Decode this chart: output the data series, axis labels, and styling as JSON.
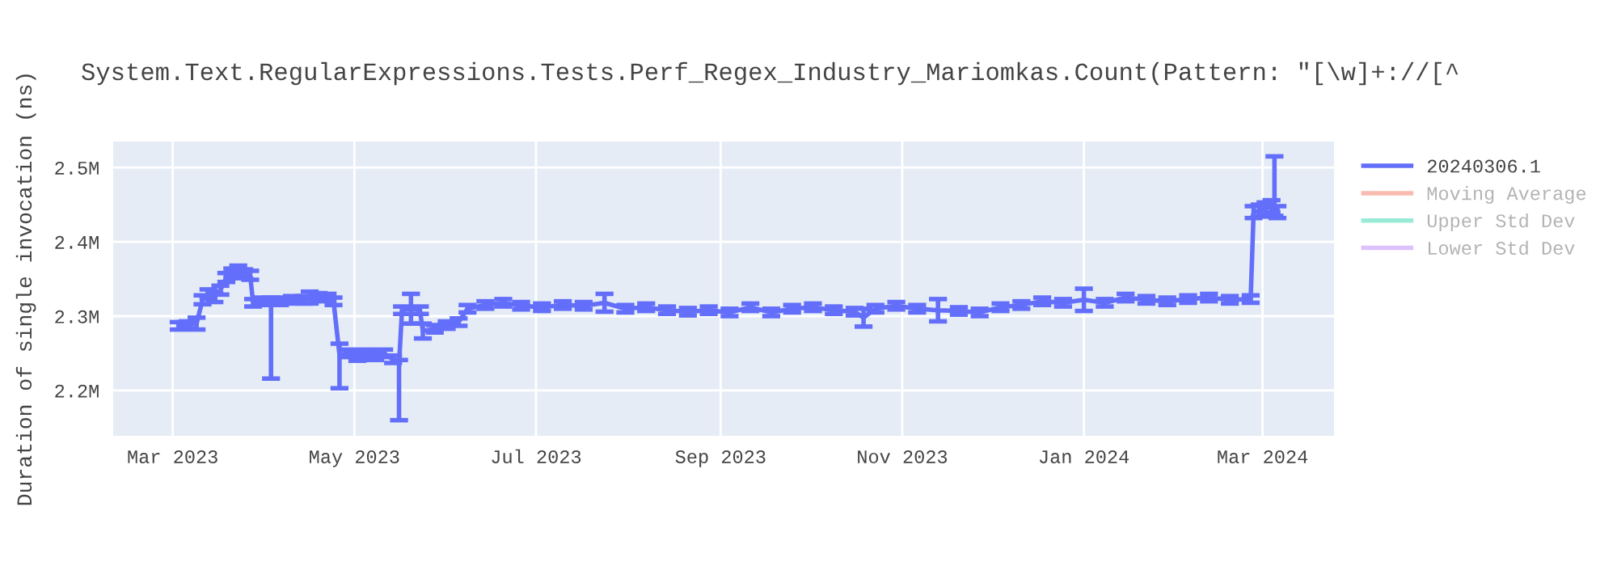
{
  "chart_data": {
    "type": "line",
    "title": "System.Text.RegularExpressions.Tests.Perf_Regex_Industry_Mariomkas.Count(Pattern: \"[\\w]+://[^",
    "ylabel": "Duration of single invocation (ns)",
    "x": [
      "2023-03-03",
      "2023-03-06",
      "2023-03-09",
      "2023-03-11",
      "2023-03-13",
      "2023-03-15",
      "2023-03-17",
      "2023-03-19",
      "2023-03-21",
      "2023-03-23",
      "2023-03-25",
      "2023-03-27",
      "2023-03-28",
      "2023-03-31",
      "2023-04-03",
      "2023-04-06",
      "2023-04-10",
      "2023-04-14",
      "2023-04-16",
      "2023-04-19",
      "2023-04-22",
      "2023-04-24",
      "2023-04-26",
      "2023-04-29",
      "2023-05-02",
      "2023-05-05",
      "2023-05-08",
      "2023-05-11",
      "2023-05-14",
      "2023-05-16",
      "2023-05-17",
      "2023-05-20",
      "2023-05-23",
      "2023-05-24",
      "2023-05-28",
      "2023-06-01",
      "2023-06-05",
      "2023-06-08",
      "2023-06-14",
      "2023-06-20",
      "2023-06-26",
      "2023-07-03",
      "2023-07-10",
      "2023-07-17",
      "2023-07-24",
      "2023-07-31",
      "2023-08-07",
      "2023-08-14",
      "2023-08-21",
      "2023-08-28",
      "2023-09-04",
      "2023-09-11",
      "2023-09-18",
      "2023-09-25",
      "2023-10-02",
      "2023-10-09",
      "2023-10-16",
      "2023-10-19",
      "2023-10-23",
      "2023-10-30",
      "2023-11-06",
      "2023-11-13",
      "2023-11-20",
      "2023-11-27",
      "2023-12-04",
      "2023-12-11",
      "2023-12-18",
      "2023-12-25",
      "2024-01-01",
      "2024-01-08",
      "2024-01-15",
      "2024-01-22",
      "2024-01-29",
      "2024-02-05",
      "2024-02-12",
      "2024-02-19",
      "2024-02-26",
      "2024-02-27",
      "2024-02-29",
      "2024-03-02",
      "2024-03-04",
      "2024-03-05",
      "2024-03-06"
    ],
    "series": [
      {
        "name": "20240306.1",
        "color": "#636efa",
        "values": [
          2287000,
          2288000,
          2290000,
          2322000,
          2330000,
          2325000,
          2335000,
          2352000,
          2358000,
          2362000,
          2357000,
          2355000,
          2318000,
          2320000,
          2320000,
          2320000,
          2322000,
          2322000,
          2325000,
          2326000,
          2325000,
          2320000,
          2248000,
          2250000,
          2245000,
          2250000,
          2246000,
          2250000,
          2242000,
          2236000,
          2308000,
          2310000,
          2308000,
          2280000,
          2283000,
          2288000,
          2292000,
          2310000,
          2315000,
          2318000,
          2314000,
          2312000,
          2315000,
          2314000,
          2318000,
          2310000,
          2312000,
          2308000,
          2306000,
          2308000,
          2305000,
          2312000,
          2305000,
          2310000,
          2312000,
          2308000,
          2306000,
          2298000,
          2310000,
          2314000,
          2310000,
          2308000,
          2307000,
          2305000,
          2312000,
          2315000,
          2320000,
          2318000,
          2322000,
          2318000,
          2325000,
          2322000,
          2320000,
          2323000,
          2325000,
          2322000,
          2323000,
          2440000,
          2442000,
          2445000,
          2448000,
          2450000,
          2440000
        ],
        "errors": [
          5000,
          5000,
          8000,
          6000,
          6000,
          6000,
          6000,
          6000,
          6000,
          6000,
          6000,
          6000,
          5000,
          5000,
          [
            2216000,
            2325000
          ],
          5000,
          5000,
          5000,
          8000,
          5000,
          5000,
          5000,
          [
            2203000,
            2263000
          ],
          5000,
          5000,
          5000,
          5000,
          5000,
          5000,
          [
            2160000,
            2241000
          ],
          5000,
          20000,
          5000,
          10000,
          5000,
          5000,
          5000,
          5000,
          5000,
          5000,
          5000,
          5000,
          5000,
          5000,
          12000,
          5000,
          5000,
          5000,
          5000,
          5000,
          5000,
          5000,
          5000,
          5000,
          5000,
          5000,
          5000,
          12000,
          5000,
          5000,
          5000,
          15000,
          5000,
          5000,
          5000,
          5000,
          5000,
          5000,
          15000,
          5000,
          5000,
          5000,
          5000,
          5000,
          5000,
          5000,
          5000,
          8000,
          8000,
          8000,
          8000,
          [
            2435000,
            2515000
          ],
          8000
        ]
      },
      {
        "name": "Moving Average",
        "color": "#ef553b",
        "values": [
          null,
          null,
          null,
          null,
          null,
          null,
          null,
          null,
          null,
          null,
          null,
          null,
          null,
          null,
          null,
          null,
          null,
          null,
          null,
          null,
          null,
          null,
          null,
          null,
          null,
          null,
          null,
          null,
          null,
          null,
          null,
          null,
          null,
          null,
          null,
          null,
          null,
          null,
          null,
          null,
          null,
          null,
          null,
          null,
          null,
          null,
          null,
          null,
          null,
          null,
          null,
          null,
          null,
          null,
          null,
          null,
          null,
          null,
          null,
          null,
          null,
          null,
          null,
          null,
          null,
          null,
          null,
          null,
          null,
          null,
          null,
          null,
          null,
          null,
          null,
          null,
          null,
          null,
          null,
          null,
          null,
          null,
          null
        ]
      },
      {
        "name": "Upper Std Dev",
        "color": "#00cc96",
        "values": [
          null,
          null,
          null,
          null,
          null,
          null,
          null,
          null,
          null,
          null,
          null,
          null,
          null,
          null,
          null,
          null,
          null,
          null,
          null,
          null,
          null,
          null,
          null,
          null,
          null,
          null,
          null,
          null,
          null,
          null,
          null,
          null,
          null,
          null,
          null,
          null,
          null,
          null,
          null,
          null,
          null,
          null,
          null,
          null,
          null,
          null,
          null,
          null,
          null,
          null,
          null,
          null,
          null,
          null,
          null,
          null,
          null,
          null,
          null,
          null,
          null,
          null,
          null,
          null,
          null,
          null,
          null,
          null,
          null,
          null,
          null,
          null,
          null,
          null,
          null,
          null,
          null,
          null,
          null,
          null,
          null,
          null,
          null
        ]
      },
      {
        "name": "Lower Std Dev",
        "color": "#ab63fa",
        "values": [
          null,
          null,
          null,
          null,
          null,
          null,
          null,
          null,
          null,
          null,
          null,
          null,
          null,
          null,
          null,
          null,
          null,
          null,
          null,
          null,
          null,
          null,
          null,
          null,
          null,
          null,
          null,
          null,
          null,
          null,
          null,
          null,
          null,
          null,
          null,
          null,
          null,
          null,
          null,
          null,
          null,
          null,
          null,
          null,
          null,
          null,
          null,
          null,
          null,
          null,
          null,
          null,
          null,
          null,
          null,
          null,
          null,
          null,
          null,
          null,
          null,
          null,
          null,
          null,
          null,
          null,
          null,
          null,
          null,
          null,
          null,
          null,
          null,
          null,
          null,
          null,
          null,
          null,
          null,
          null,
          null,
          null,
          null
        ]
      }
    ],
    "xlim": [
      "2023-02-09",
      "2024-03-25"
    ],
    "xticks": [
      {
        "value": "2023-03-01",
        "label": "Mar 2023"
      },
      {
        "value": "2023-05-01",
        "label": "May 2023"
      },
      {
        "value": "2023-07-01",
        "label": "Jul 2023"
      },
      {
        "value": "2023-09-01",
        "label": "Sep 2023"
      },
      {
        "value": "2023-11-01",
        "label": "Nov 2023"
      },
      {
        "value": "2024-01-01",
        "label": "Jan 2024"
      },
      {
        "value": "2024-03-01",
        "label": "Mar 2024"
      }
    ],
    "ylim": [
      2139000,
      2535000
    ],
    "yticks": [
      {
        "value": 2200000,
        "label": "2.2M"
      },
      {
        "value": 2300000,
        "label": "2.3M"
      },
      {
        "value": 2400000,
        "label": "2.4M"
      },
      {
        "value": 2500000,
        "label": "2.5M"
      }
    ],
    "grid": true,
    "legend": "top right"
  }
}
